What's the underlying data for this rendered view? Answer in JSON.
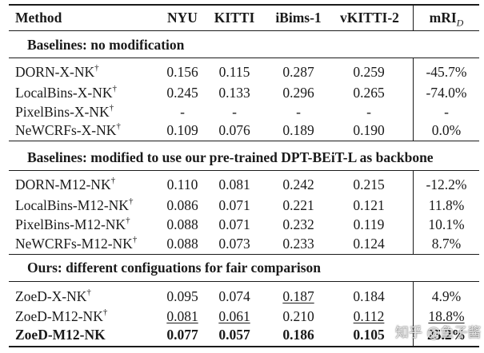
{
  "header": {
    "method": "Method",
    "cols": [
      "NYU",
      "KITTI",
      "iBims-1",
      "vKITTI-2"
    ],
    "mri": "mRI",
    "mri_sub": "D"
  },
  "sections": [
    {
      "title": "Baselines: no modification",
      "rows": [
        {
          "method": "DORN-X-NK",
          "dagger": "†",
          "values": [
            "0.156",
            "0.115",
            "0.287",
            "0.259",
            "-45.7%"
          ]
        },
        {
          "method": "LocalBins-X-NK",
          "dagger": "†",
          "values": [
            "0.245",
            "0.133",
            "0.296",
            "0.265",
            "-74.0%"
          ]
        },
        {
          "method": "PixelBins-X-NK",
          "dagger": "†",
          "values": [
            "-",
            "-",
            "-",
            "-",
            "-"
          ]
        },
        {
          "method": "NeWCRFs-X-NK",
          "dagger": "†",
          "values": [
            "0.109",
            "0.076",
            "0.189",
            "0.190",
            "0.0%"
          ]
        }
      ]
    },
    {
      "title": "Baselines: modified to use our pre-trained DPT-BEiT-L as backbone",
      "rows": [
        {
          "method": "DORN-M12-NK",
          "dagger": "†",
          "values": [
            "0.110",
            "0.081",
            "0.242",
            "0.215",
            "-12.2%"
          ]
        },
        {
          "method": "LocalBins-M12-NK",
          "dagger": "†",
          "values": [
            "0.086",
            "0.071",
            "0.221",
            "0.121",
            "11.8%"
          ]
        },
        {
          "method": "PixelBins-M12-NK",
          "dagger": "†",
          "values": [
            "0.088",
            "0.071",
            "0.232",
            "0.119",
            "10.1%"
          ]
        },
        {
          "method": "NeWCRFs-M12-NK",
          "dagger": "†",
          "values": [
            "0.088",
            "0.073",
            "0.233",
            "0.124",
            "8.7%"
          ]
        }
      ]
    },
    {
      "title": "Ours: different configuations for fair comparison",
      "rows": [
        {
          "method": "ZoeD-X-NK",
          "dagger": "†",
          "values": [
            "0.095",
            "0.074",
            "0.187",
            "0.184",
            "4.9%"
          ],
          "underline": [
            false,
            false,
            true,
            false,
            false
          ]
        },
        {
          "method": "ZoeD-M12-NK",
          "dagger": "†",
          "values": [
            "0.081",
            "0.061",
            "0.210",
            "0.112",
            "18.8%"
          ],
          "underline": [
            true,
            true,
            false,
            true,
            true
          ]
        },
        {
          "method": "ZoeD-M12-NK",
          "dagger": "",
          "bold": true,
          "values": [
            "0.077",
            "0.057",
            "0.186",
            "0.105",
            "25.2%"
          ]
        }
      ]
    }
  ],
  "watermark": "知乎 @鱼子酱"
}
